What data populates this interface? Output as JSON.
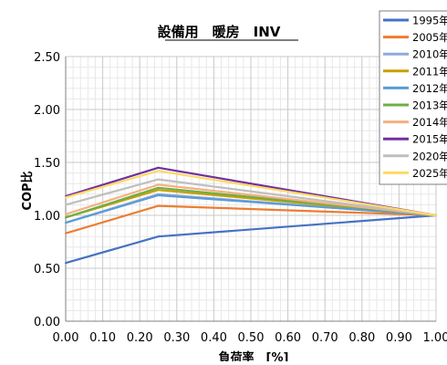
{
  "chart_data": {
    "type": "line",
    "title": "設備用　暖房　INV",
    "xlabel": "負荷率　[%]",
    "ylabel": "COP比",
    "xlim": [
      0.0,
      1.0
    ],
    "ylim": [
      0.0,
      2.5
    ],
    "x_ticks": [
      "0.00",
      "0.10",
      "0.20",
      "0.30",
      "0.40",
      "0.50",
      "0.60",
      "0.70",
      "0.80",
      "0.90",
      "1.00"
    ],
    "y_ticks": [
      "0.00",
      "0.50",
      "1.00",
      "1.50",
      "2.00",
      "2.50"
    ],
    "grid": true,
    "legend_position": "top-right",
    "x": [
      0.0,
      0.25,
      1.0
    ],
    "series": [
      {
        "name": "1995年",
        "color": "#4472C4",
        "values": [
          0.55,
          0.8,
          1.0
        ]
      },
      {
        "name": "2005年",
        "color": "#ED7D31",
        "values": [
          0.83,
          1.09,
          1.0
        ]
      },
      {
        "name": "2010年",
        "color": "#8FAADC",
        "values": [
          0.93,
          1.2,
          1.0
        ]
      },
      {
        "name": "2011年",
        "color": "#C9A000",
        "values": [
          0.98,
          1.24,
          1.0
        ]
      },
      {
        "name": "2012年",
        "color": "#5B9BD5",
        "values": [
          0.93,
          1.19,
          1.0
        ]
      },
      {
        "name": "2013年",
        "color": "#70AD47",
        "values": [
          0.98,
          1.26,
          1.0
        ]
      },
      {
        "name": "2014年",
        "color": "#F4B183",
        "values": [
          1.01,
          1.29,
          1.0
        ]
      },
      {
        "name": "2015年",
        "color": "#7030A0",
        "values": [
          1.18,
          1.45,
          1.0
        ]
      },
      {
        "name": "2020年",
        "color": "#BFBFBF",
        "values": [
          1.1,
          1.34,
          1.0
        ]
      },
      {
        "name": "2025年",
        "color": "#FFD966",
        "values": [
          1.17,
          1.42,
          1.0
        ]
      }
    ]
  }
}
